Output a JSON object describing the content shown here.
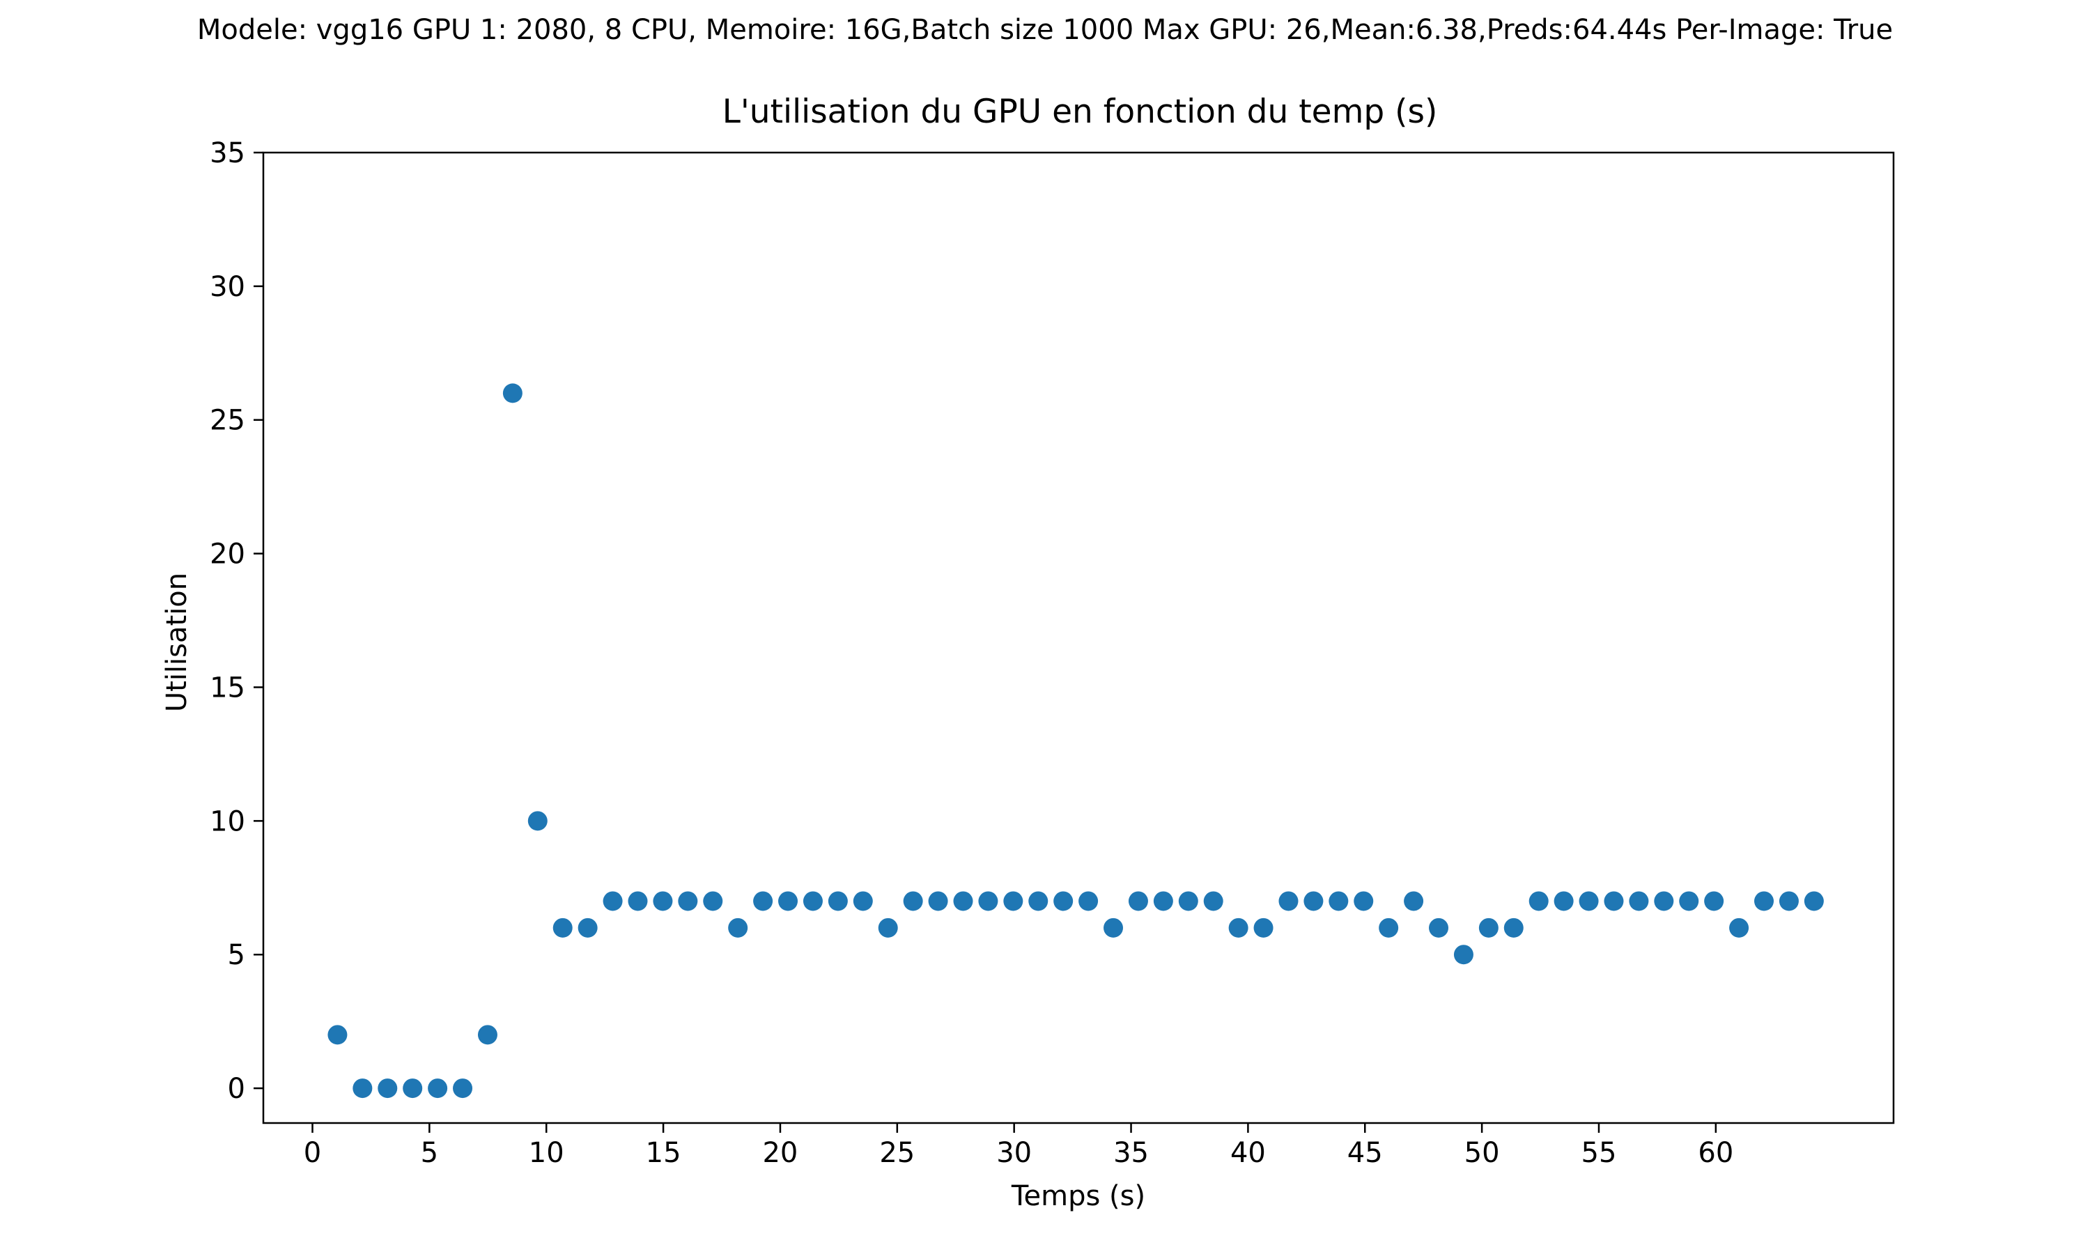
{
  "suptitle": "Modele: vgg16 GPU 1: 2080, 8 CPU, Memoire: 16G,Batch size 1000 Max GPU: 26,Mean:6.38,Preds:64.44s Per-Image: True",
  "chart_data": {
    "type": "scatter",
    "title": "L'utilisation du GPU  en fonction du temp (s)",
    "xlabel": "Temps (s)",
    "ylabel": "Utilisation",
    "xlim": [
      -2.1,
      67.6
    ],
    "ylim": [
      -1.3,
      35
    ],
    "xticks": [
      0,
      5,
      10,
      15,
      20,
      25,
      30,
      35,
      40,
      45,
      50,
      55,
      60
    ],
    "yticks": [
      0,
      5,
      10,
      15,
      20,
      25,
      30,
      35
    ],
    "grid": false,
    "marker_color": "#1f77b4",
    "series": [
      {
        "x": [
          1.07,
          2.14,
          3.21,
          4.28,
          5.35,
          6.42,
          7.49,
          8.56,
          9.63,
          10.7,
          11.77,
          12.84,
          13.91,
          14.98,
          16.05,
          17.12,
          18.19,
          19.26,
          20.33,
          21.4,
          22.47,
          23.54,
          24.61,
          25.68,
          26.75,
          27.82,
          28.89,
          29.96,
          31.03,
          32.1,
          33.17,
          34.24,
          35.31,
          36.38,
          37.45,
          38.52,
          39.59,
          40.66,
          41.73,
          42.8,
          43.87,
          44.94,
          46.01,
          47.08,
          48.15,
          49.22,
          50.29,
          51.36,
          52.43,
          53.5,
          54.57,
          55.64,
          56.71,
          57.78,
          58.85,
          59.92,
          60.99,
          62.06,
          63.13,
          64.2
        ],
        "y": [
          2,
          0,
          0,
          0,
          0,
          0,
          2,
          26,
          10,
          6,
          6,
          7,
          7,
          7,
          7,
          7,
          6,
          7,
          7,
          7,
          7,
          7,
          6,
          7,
          7,
          7,
          7,
          7,
          7,
          7,
          7,
          6,
          7,
          7,
          7,
          7,
          6,
          6,
          7,
          7,
          7,
          7,
          6,
          7,
          6,
          5,
          6,
          6,
          7,
          7,
          7,
          7,
          7,
          7,
          7,
          7,
          6,
          7,
          7,
          7
        ]
      }
    ]
  }
}
